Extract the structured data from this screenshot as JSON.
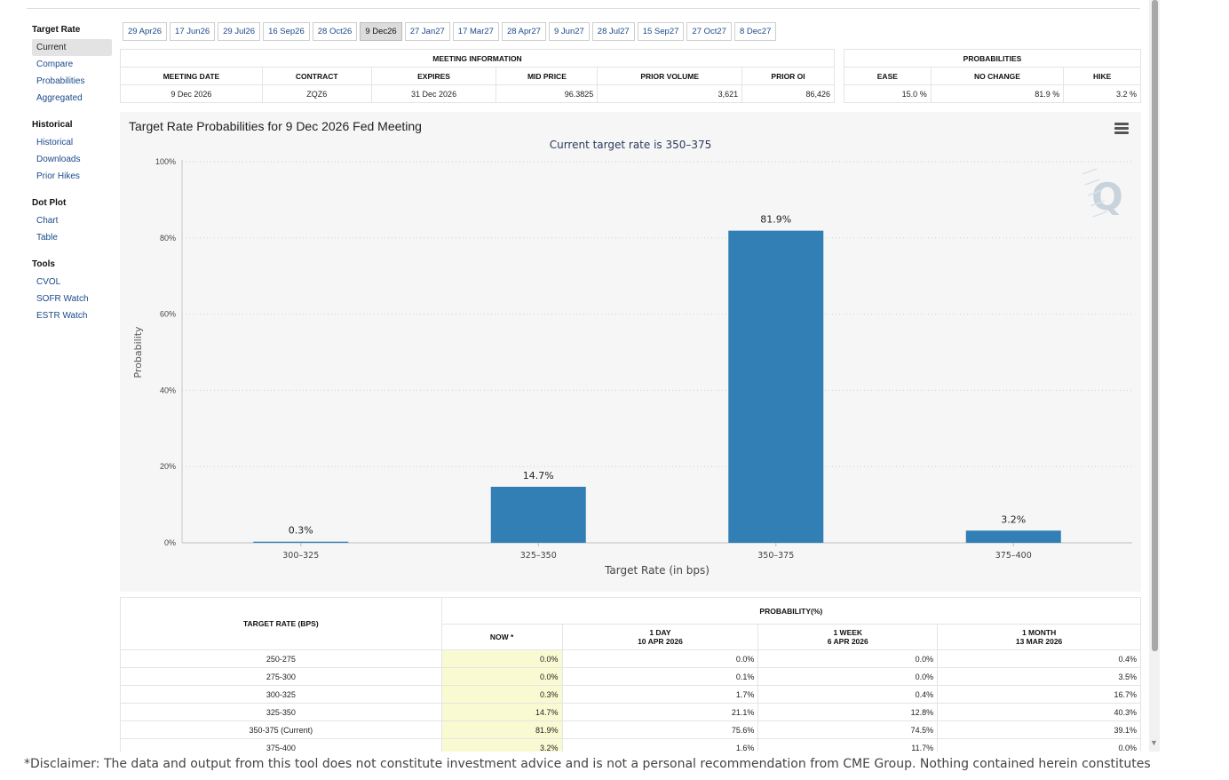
{
  "sidebar": {
    "sections": [
      {
        "heading": "Target Rate",
        "items": [
          "Current",
          "Compare",
          "Probabilities",
          "Aggregated"
        ],
        "active": 0
      },
      {
        "heading": "Historical",
        "items": [
          "Historical",
          "Downloads",
          "Prior Hikes"
        ],
        "active": -1
      },
      {
        "heading": "Dot Plot",
        "items": [
          "Chart",
          "Table"
        ],
        "active": -1
      },
      {
        "heading": "Tools",
        "items": [
          "CVOL",
          "SOFR Watch",
          "ESTR Watch"
        ],
        "active": -1
      }
    ]
  },
  "date_tabs": {
    "items": [
      "29 Apr26",
      "17 Jun26",
      "29 Jul26",
      "16 Sep26",
      "28 Oct26",
      "9 Dec26",
      "27 Jan27",
      "17 Mar27",
      "28 Apr27",
      "9 Jun27",
      "28 Jul27",
      "15 Sep27",
      "27 Oct27",
      "8 Dec27"
    ],
    "active": 5
  },
  "meeting_info": {
    "title": "MEETING INFORMATION",
    "headers": [
      "MEETING DATE",
      "CONTRACT",
      "EXPIRES",
      "MID PRICE",
      "PRIOR VOLUME",
      "PRIOR OI"
    ],
    "values": [
      "9 Dec 2026",
      "ZQZ6",
      "31 Dec 2026",
      "96.3825",
      "3,621",
      "86,426"
    ]
  },
  "probabilities": {
    "title": "PROBABILITIES",
    "headers": [
      "EASE",
      "NO CHANGE",
      "HIKE"
    ],
    "values": [
      "15.0 %",
      "81.9 %",
      "3.2 %"
    ]
  },
  "chart": {
    "title": "Target Rate Probabilities for 9 Dec 2026 Fed Meeting",
    "subtitle": "Current target rate is 350–375",
    "bar_color": "#317fb5"
  },
  "chart_data": {
    "type": "bar",
    "categories": [
      "300–325",
      "325–350",
      "350–375",
      "375–400"
    ],
    "values": [
      0.3,
      14.7,
      81.9,
      3.2
    ],
    "data_labels": [
      "0.3%",
      "14.7%",
      "81.9%",
      "3.2%"
    ],
    "title": "Target Rate Probabilities for 9 Dec 2026 Fed Meeting",
    "subtitle": "Current target rate is 350–375",
    "xlabel": "Target Rate (in bps)",
    "ylabel": "Probability",
    "ylim": [
      0,
      100
    ],
    "yticks": [
      0,
      20,
      40,
      60,
      80,
      100
    ],
    "ytick_labels": [
      "0%",
      "20%",
      "40%",
      "60%",
      "80%",
      "100%"
    ],
    "grid": true,
    "legend": "none"
  },
  "bottom_table": {
    "rate_header": "TARGET RATE (BPS)",
    "group_header": "PROBABILITY(%)",
    "col_headers": [
      {
        "line1": "NOW *",
        "line2": ""
      },
      {
        "line1": "1 DAY",
        "line2": "10 APR 2026"
      },
      {
        "line1": "1 WEEK",
        "line2": "6 APR 2026"
      },
      {
        "line1": "1 MONTH",
        "line2": "13 MAR 2026"
      }
    ],
    "rows": [
      {
        "rate": "250-275",
        "now": "0.0%",
        "day": "0.0%",
        "week": "0.0%",
        "month": "0.4%"
      },
      {
        "rate": "275-300",
        "now": "0.0%",
        "day": "0.1%",
        "week": "0.0%",
        "month": "3.5%"
      },
      {
        "rate": "300-325",
        "now": "0.3%",
        "day": "1.7%",
        "week": "0.4%",
        "month": "16.7%"
      },
      {
        "rate": "325-350",
        "now": "14.7%",
        "day": "21.1%",
        "week": "12.8%",
        "month": "40.3%"
      },
      {
        "rate": "350-375 (Current)",
        "now": "81.9%",
        "day": "75.6%",
        "week": "74.5%",
        "month": "39.1%"
      },
      {
        "rate": "375-400",
        "now": "3.2%",
        "day": "1.6%",
        "week": "11.7%",
        "month": "0.0%"
      }
    ]
  },
  "disclaimer": "*Disclaimer: The data and output from this tool does not constitute investment advice and is not a personal recommendation from CME Group.  Nothing contained herein constitutes",
  "icons": {
    "menu": "hamburger-menu-icon",
    "watermark": "quikstrike-q-logo",
    "scroll": "scroll-down-arrow-icon"
  }
}
